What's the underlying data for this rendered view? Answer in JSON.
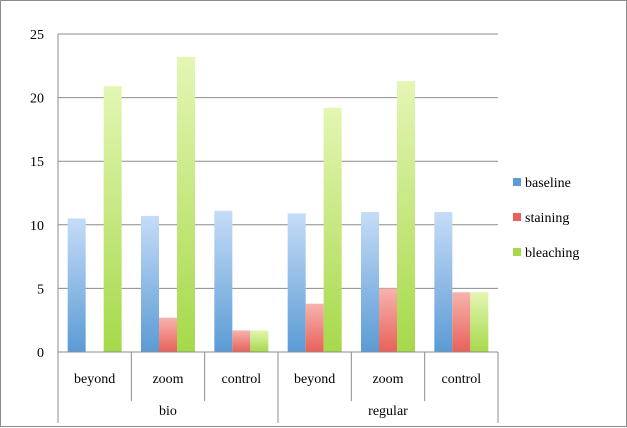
{
  "chart_data": {
    "type": "bar",
    "title": "",
    "xlabel": "",
    "ylabel": "",
    "ylim": [
      0,
      25
    ],
    "yticks": [
      0,
      5,
      10,
      15,
      20,
      25
    ],
    "grid": true,
    "legend_position": "right",
    "groups": [
      {
        "label": "bio",
        "categories": [
          "beyond",
          "zoom",
          "control"
        ]
      },
      {
        "label": "regular",
        "categories": [
          "beyond",
          "zoom",
          "control"
        ]
      }
    ],
    "categories": [
      "beyond",
      "zoom",
      "control",
      "beyond",
      "zoom",
      "control"
    ],
    "series": [
      {
        "name": "baseline",
        "color": "#5b9bd5",
        "values": [
          10.5,
          10.7,
          11.1,
          10.9,
          11.0,
          11.0
        ]
      },
      {
        "name": "staining",
        "color": "#e8615a",
        "values": [
          0,
          2.7,
          1.7,
          3.8,
          5.0,
          4.7
        ]
      },
      {
        "name": "bleaching",
        "color": "#a6d94a",
        "values": [
          20.9,
          23.2,
          1.7,
          19.2,
          21.3,
          4.7
        ]
      }
    ]
  }
}
